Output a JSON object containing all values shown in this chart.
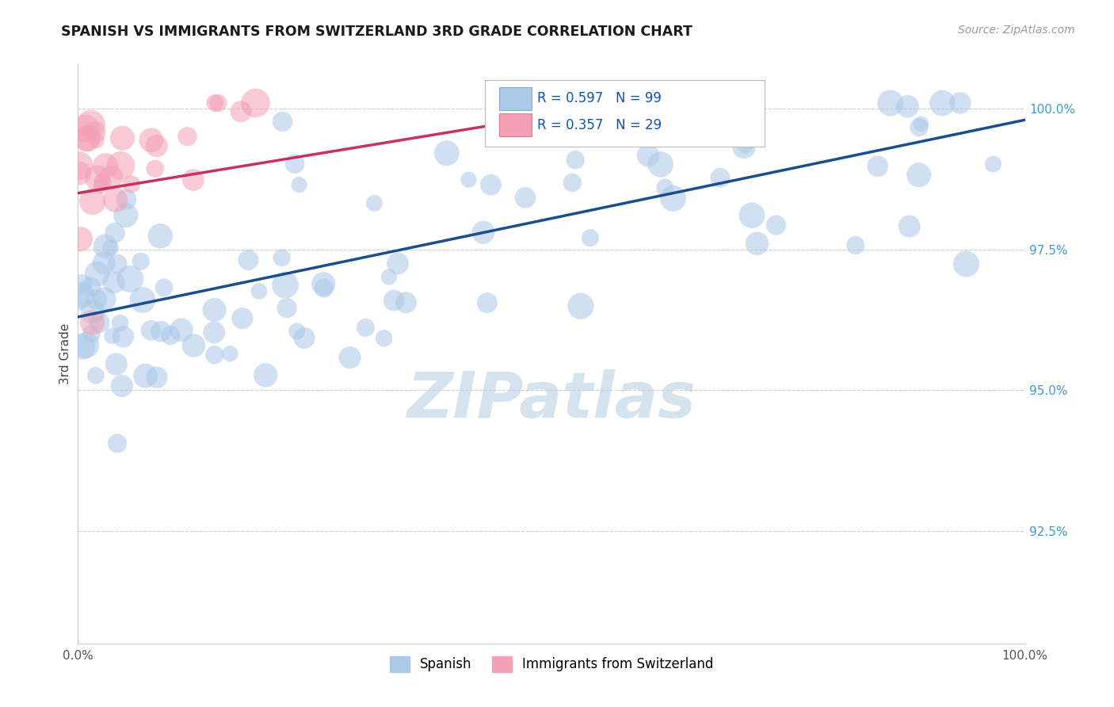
{
  "title": "SPANISH VS IMMIGRANTS FROM SWITZERLAND 3RD GRADE CORRELATION CHART",
  "source_text": "Source: ZipAtlas.com",
  "ylabel": "3rd Grade",
  "blue_R": 0.597,
  "blue_N": 99,
  "pink_R": 0.357,
  "pink_N": 29,
  "blue_color": "#aac8e8",
  "blue_line_color": "#1a4e8c",
  "pink_color": "#f4a0b5",
  "pink_line_color": "#c83060",
  "background_color": "#ffffff",
  "watermark_color": "#d5e3ef",
  "grid_color": "#cccccc",
  "title_color": "#1a1a1a",
  "source_color": "#999999",
  "ylabel_color": "#444444",
  "ytick_color": "#4499cc",
  "xtick_color": "#555555",
  "legend_border_color": "#bbbbbb",
  "xlim": [
    0.0,
    1.0
  ],
  "ylim": [
    0.905,
    1.008
  ],
  "ytick_positions": [
    0.925,
    0.95,
    0.975,
    1.0
  ],
  "ytick_labels": [
    "92.5%",
    "95.0%",
    "97.5%",
    "100.0%"
  ],
  "blue_trendline_x": [
    0.0,
    1.0
  ],
  "blue_trendline_y": [
    0.963,
    0.998
  ],
  "pink_trendline_x": [
    0.0,
    0.58
  ],
  "pink_trendline_y": [
    0.985,
    1.001
  ]
}
